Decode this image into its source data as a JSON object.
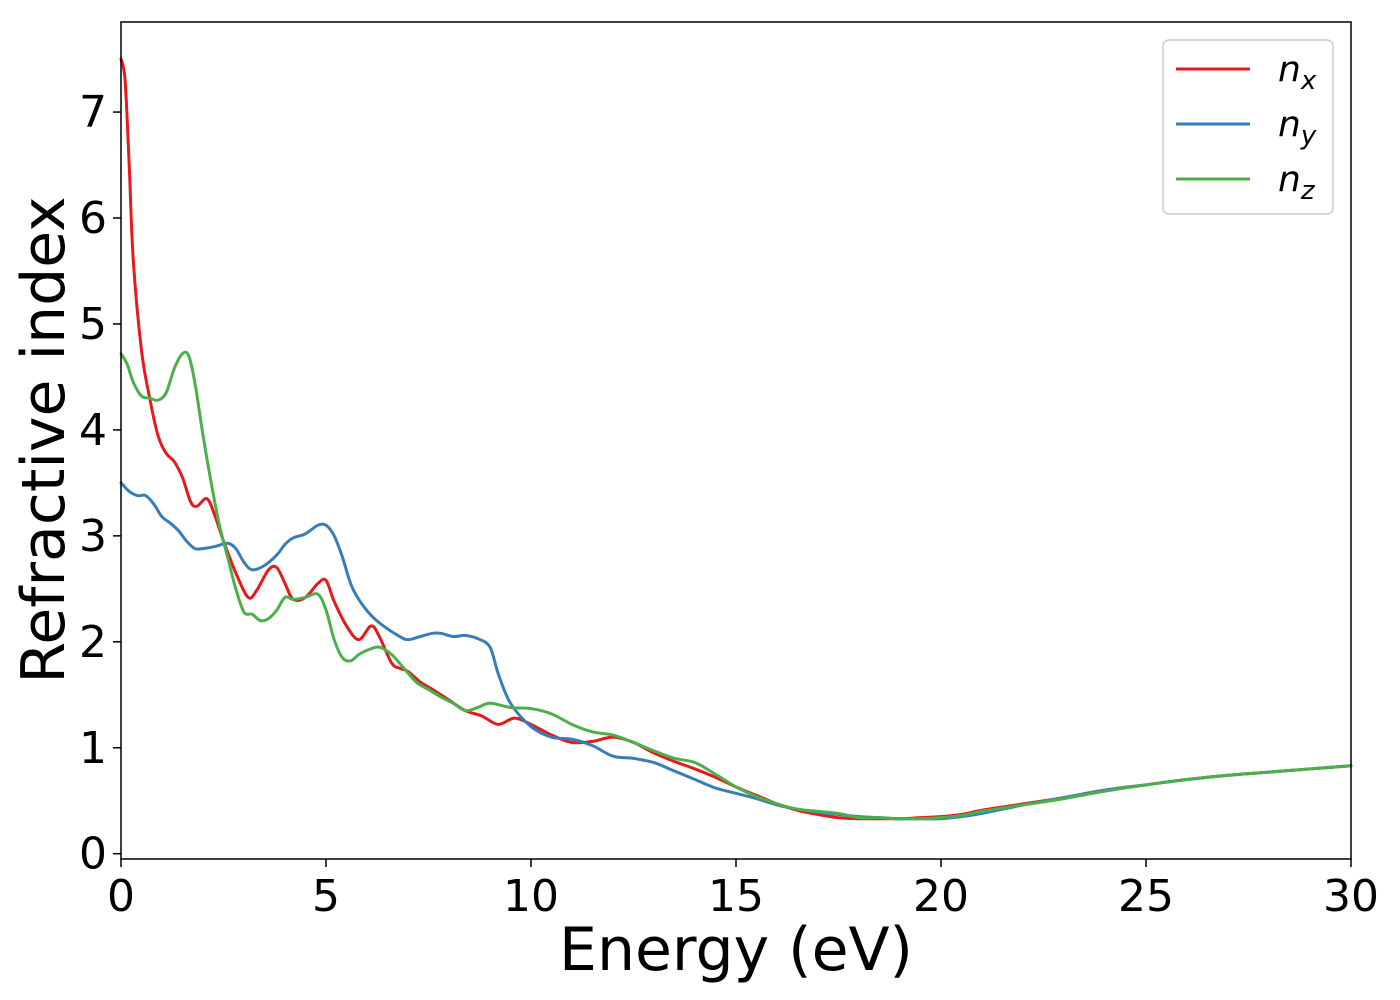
{
  "chart_data": {
    "type": "line",
    "title": "",
    "xlabel": "Energy (eV)",
    "ylabel": "Refractive index",
    "xlim": [
      0,
      30
    ],
    "ylim": [
      -0.05,
      7.85
    ],
    "xticks": [
      0,
      5,
      10,
      15,
      20,
      25,
      30
    ],
    "yticks": [
      0,
      1,
      2,
      3,
      4,
      5,
      6,
      7
    ],
    "grid": false,
    "legend_position": "top-right",
    "series": [
      {
        "name": "n",
        "subscript": "x",
        "color": "#e41a1c",
        "x": [
          0,
          0.1,
          0.2,
          0.3,
          0.5,
          0.7,
          0.9,
          1.1,
          1.3,
          1.5,
          1.7,
          1.85,
          2.1,
          2.3,
          2.5,
          2.8,
          3.1,
          3.3,
          3.6,
          3.8,
          4.0,
          4.2,
          4.5,
          4.8,
          5.0,
          5.2,
          5.5,
          5.8,
          6.1,
          6.3,
          6.6,
          6.8,
          7.0,
          7.3,
          7.6,
          8.0,
          8.4,
          8.8,
          9.2,
          9.6,
          10,
          10.5,
          11,
          11.5,
          12,
          12.5,
          13,
          13.5,
          14,
          14.5,
          15,
          15.5,
          16,
          16.5,
          17,
          17.5,
          18,
          18.5,
          19,
          19.5,
          20,
          20.5,
          21,
          22,
          23,
          24,
          25,
          26,
          27,
          28,
          29,
          30
        ],
        "values": [
          7.5,
          7.3,
          6.5,
          5.6,
          4.75,
          4.3,
          3.95,
          3.78,
          3.7,
          3.55,
          3.32,
          3.28,
          3.35,
          3.18,
          2.95,
          2.65,
          2.42,
          2.48,
          2.68,
          2.7,
          2.55,
          2.4,
          2.42,
          2.55,
          2.58,
          2.38,
          2.15,
          2.02,
          2.15,
          2.05,
          1.8,
          1.75,
          1.72,
          1.62,
          1.55,
          1.45,
          1.35,
          1.3,
          1.22,
          1.28,
          1.22,
          1.12,
          1.05,
          1.06,
          1.1,
          1.05,
          0.95,
          0.87,
          0.8,
          0.72,
          0.63,
          0.55,
          0.47,
          0.41,
          0.37,
          0.34,
          0.33,
          0.33,
          0.33,
          0.34,
          0.35,
          0.37,
          0.41,
          0.47,
          0.53,
          0.6,
          0.65,
          0.7,
          0.74,
          0.77,
          0.8,
          0.83
        ]
      },
      {
        "name": "n",
        "subscript": "y",
        "color": "#377eb8",
        "x": [
          0,
          0.2,
          0.4,
          0.6,
          0.8,
          1.0,
          1.2,
          1.4,
          1.6,
          1.8,
          2.0,
          2.3,
          2.6,
          2.8,
          3.0,
          3.2,
          3.5,
          3.8,
          4.0,
          4.2,
          4.5,
          4.8,
          5.0,
          5.2,
          5.4,
          5.6,
          5.8,
          6.1,
          6.4,
          6.8,
          7.0,
          7.3,
          7.6,
          7.8,
          8.1,
          8.4,
          8.7,
          9.0,
          9.2,
          9.5,
          10,
          10.5,
          11,
          11.5,
          12,
          12.5,
          13,
          13.5,
          14,
          14.5,
          15,
          15.5,
          16,
          16.5,
          17,
          17.5,
          18,
          18.5,
          19,
          19.5,
          20,
          20.5,
          21,
          22,
          23,
          24,
          25,
          26,
          27,
          28,
          29,
          30
        ],
        "values": [
          3.5,
          3.42,
          3.38,
          3.38,
          3.3,
          3.18,
          3.12,
          3.05,
          2.95,
          2.88,
          2.88,
          2.9,
          2.93,
          2.88,
          2.75,
          2.68,
          2.72,
          2.82,
          2.92,
          2.98,
          3.02,
          3.1,
          3.1,
          3.0,
          2.8,
          2.55,
          2.4,
          2.25,
          2.15,
          2.05,
          2.02,
          2.05,
          2.08,
          2.08,
          2.05,
          2.06,
          2.03,
          1.95,
          1.7,
          1.42,
          1.2,
          1.1,
          1.08,
          1.02,
          0.92,
          0.9,
          0.86,
          0.78,
          0.7,
          0.62,
          0.57,
          0.52,
          0.46,
          0.42,
          0.39,
          0.37,
          0.35,
          0.34,
          0.33,
          0.33,
          0.33,
          0.35,
          0.38,
          0.46,
          0.53,
          0.6,
          0.65,
          0.7,
          0.74,
          0.77,
          0.8,
          0.83
        ]
      },
      {
        "name": "n",
        "subscript": "z",
        "color": "#4daf4a",
        "x": [
          0,
          0.15,
          0.3,
          0.5,
          0.7,
          0.9,
          1.1,
          1.3,
          1.5,
          1.65,
          1.8,
          2.0,
          2.2,
          2.4,
          2.6,
          2.8,
          3.0,
          3.2,
          3.4,
          3.6,
          3.8,
          4.0,
          4.2,
          4.5,
          4.8,
          5.0,
          5.2,
          5.4,
          5.6,
          5.8,
          6.0,
          6.3,
          6.6,
          6.9,
          7.2,
          7.5,
          7.8,
          8.1,
          8.4,
          8.7,
          9.0,
          9.5,
          10,
          10.5,
          11,
          11.5,
          12,
          12.5,
          13,
          13.5,
          14,
          14.5,
          15,
          15.5,
          16,
          16.5,
          17,
          17.5,
          18,
          18.5,
          19,
          19.5,
          20,
          20.5,
          21,
          22,
          23,
          24,
          25,
          26,
          27,
          28,
          29,
          30
        ],
        "values": [
          4.72,
          4.62,
          4.45,
          4.32,
          4.3,
          4.28,
          4.35,
          4.58,
          4.72,
          4.7,
          4.45,
          3.95,
          3.5,
          3.1,
          2.8,
          2.5,
          2.28,
          2.26,
          2.2,
          2.22,
          2.3,
          2.42,
          2.4,
          2.42,
          2.45,
          2.3,
          2.02,
          1.85,
          1.82,
          1.88,
          1.92,
          1.95,
          1.88,
          1.75,
          1.62,
          1.55,
          1.48,
          1.42,
          1.35,
          1.38,
          1.42,
          1.38,
          1.37,
          1.32,
          1.22,
          1.15,
          1.12,
          1.05,
          0.97,
          0.9,
          0.86,
          0.75,
          0.63,
          0.54,
          0.47,
          0.42,
          0.4,
          0.38,
          0.34,
          0.34,
          0.33,
          0.33,
          0.34,
          0.36,
          0.4,
          0.46,
          0.52,
          0.59,
          0.65,
          0.7,
          0.74,
          0.77,
          0.8,
          0.83
        ]
      }
    ]
  }
}
